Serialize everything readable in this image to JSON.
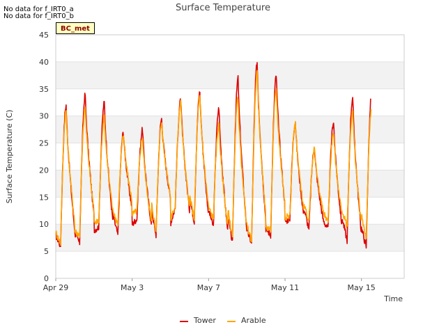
{
  "notes": [
    "No data for f_IRT0_a",
    "No data for f_IRT0_b"
  ],
  "badge": "BC_met",
  "chart_data": {
    "type": "line",
    "title": "Surface Temperature",
    "xlabel": "Time",
    "ylabel": "Surface Temperature (C)",
    "ylim": [
      0,
      45
    ],
    "yticks": [
      0,
      5,
      10,
      15,
      20,
      25,
      30,
      35,
      40,
      45
    ],
    "xticks": [
      "Apr 29",
      "May 3",
      "May 7",
      "May 11",
      "May 15"
    ],
    "x_range_days": [
      "Apr 29",
      "May 17"
    ],
    "grid": "horizontal bands",
    "legend_position": "bottom-center",
    "x_dates": [
      "Apr 29",
      "Apr 30",
      "May 1",
      "May 2",
      "May 3",
      "May 4",
      "May 5",
      "May 6",
      "May 7",
      "May 8",
      "May 9",
      "May 10",
      "May 11",
      "May 12",
      "May 13",
      "May 14",
      "May 15",
      "May 16",
      "May 17"
    ],
    "series": [
      {
        "name": "Tower",
        "color": "#dd0000",
        "daily_max": [
          32,
          34,
          32.5,
          27,
          27.5,
          29.5,
          33,
          34.5,
          31.5,
          37,
          40,
          37.5,
          29,
          24,
          29,
          33.5,
          34.5
        ],
        "daily_min": [
          6,
          6.5,
          9.5,
          8,
          11,
          8,
          13,
          10.5,
          9.5,
          6.5,
          6.5,
          8,
          11,
          9,
          9,
          7,
          5.8
        ]
      },
      {
        "name": "Arable",
        "color": "#ffa500",
        "daily_max": [
          31,
          31.5,
          30,
          26.5,
          26,
          29,
          32.5,
          33.5,
          28.5,
          33.5,
          38,
          35,
          28.5,
          24,
          27,
          31,
          32
        ],
        "daily_min": [
          6.5,
          8,
          10.5,
          10,
          12.5,
          8.5,
          13.5,
          11,
          11,
          7.5,
          7,
          9,
          11.5,
          10.5,
          10.5,
          9.5,
          7.5
        ]
      }
    ]
  }
}
